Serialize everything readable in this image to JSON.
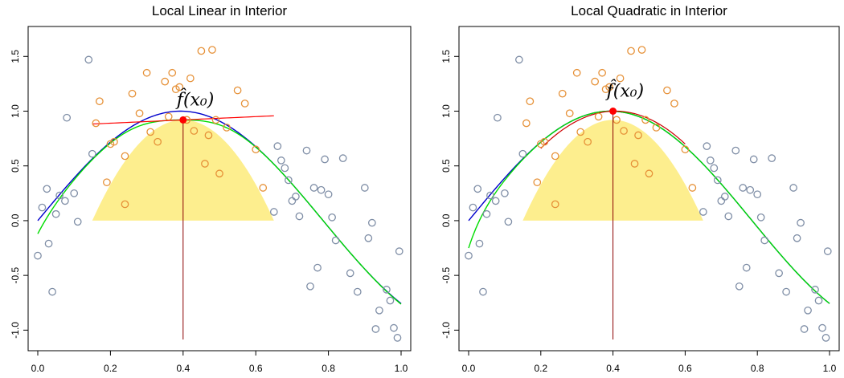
{
  "chart_data": [
    {
      "type": "scatter",
      "title": "Local Linear in Interior",
      "xlabel": "",
      "ylabel": "",
      "xlim": [
        0,
        1
      ],
      "ylim": [
        -1.1,
        1.7
      ],
      "xticks": [
        "0.0",
        "0.2",
        "0.4",
        "0.6",
        "0.8",
        "1.0"
      ],
      "yticks": [
        "-1.0",
        "-0.5",
        "0.0",
        "0.5",
        "1.0",
        "1.5"
      ],
      "annotation": "f̂(x₀)",
      "x0": 0.4,
      "fhat_x0": 0.92,
      "kernel": {
        "type": "epanechnikov",
        "center": 0.4,
        "halfwidth": 0.25,
        "height": 0.92
      },
      "local_fit": {
        "type": "linear",
        "x_range": [
          0.15,
          0.65
        ],
        "intercept": 0.92,
        "slope": 0.15
      },
      "true_function": "sin(4x)",
      "estimate_function": "smooth_linear",
      "colors": {
        "in_window_points": "#e69138",
        "out_window_points": "#7f8ea6",
        "true_curve": "#0000cc",
        "estimate_curve": "#00dd00",
        "local_fit": "#ff0000",
        "kernel_fill": "#fdee8e",
        "marker_line": "#8b0000",
        "marker_point": "#ff0000"
      },
      "points": {
        "x": [
          0.0,
          0.012,
          0.025,
          0.03,
          0.04,
          0.05,
          0.06,
          0.075,
          0.08,
          0.1,
          0.11,
          0.14,
          0.15,
          0.16,
          0.17,
          0.19,
          0.2,
          0.21,
          0.24,
          0.24,
          0.26,
          0.28,
          0.3,
          0.31,
          0.33,
          0.35,
          0.36,
          0.37,
          0.38,
          0.39,
          0.41,
          0.42,
          0.43,
          0.45,
          0.46,
          0.47,
          0.48,
          0.49,
          0.5,
          0.52,
          0.55,
          0.57,
          0.6,
          0.62,
          0.65,
          0.66,
          0.67,
          0.68,
          0.69,
          0.7,
          0.71,
          0.72,
          0.74,
          0.75,
          0.76,
          0.77,
          0.78,
          0.79,
          0.8,
          0.81,
          0.82,
          0.84,
          0.86,
          0.88,
          0.9,
          0.91,
          0.92,
          0.93,
          0.94,
          0.96,
          0.97,
          0.98,
          0.99,
          0.995
        ],
        "y": [
          -0.32,
          0.12,
          0.29,
          -0.21,
          -0.65,
          0.06,
          0.23,
          0.18,
          0.94,
          0.25,
          -0.01,
          1.47,
          0.61,
          0.89,
          1.09,
          0.35,
          0.7,
          0.72,
          0.15,
          0.59,
          1.16,
          0.98,
          1.35,
          0.81,
          0.72,
          1.27,
          0.95,
          1.35,
          1.2,
          1.22,
          0.92,
          1.3,
          0.82,
          1.55,
          0.52,
          0.78,
          1.56,
          0.92,
          0.43,
          0.85,
          1.19,
          1.07,
          0.65,
          0.3,
          0.08,
          0.68,
          0.55,
          0.48,
          0.37,
          0.18,
          0.22,
          0.04,
          0.64,
          -0.6,
          0.3,
          -0.43,
          0.28,
          0.56,
          0.24,
          0.03,
          -0.18,
          0.57,
          -0.48,
          -0.65,
          0.3,
          -0.16,
          -0.02,
          -0.99,
          -0.82,
          -0.63,
          -0.73,
          -0.98,
          -1.07,
          -0.28
        ]
      }
    },
    {
      "type": "scatter",
      "title": "Local Quadratic in Interior",
      "xlabel": "",
      "ylabel": "",
      "xlim": [
        0,
        1
      ],
      "ylim": [
        -1.1,
        1.7
      ],
      "xticks": [
        "0.0",
        "0.2",
        "0.4",
        "0.6",
        "0.8",
        "1.0"
      ],
      "yticks": [
        "-1.0",
        "-0.5",
        "0.0",
        "0.5",
        "1.0",
        "1.5"
      ],
      "annotation": "f̂(x₀)",
      "x0": 0.4,
      "fhat_x0": 1.0,
      "kernel": {
        "type": "epanechnikov",
        "center": 0.4,
        "halfwidth": 0.25,
        "height": 0.92
      },
      "local_fit": {
        "type": "quadratic",
        "x_range": [
          0.15,
          0.65
        ],
        "intercept": 1.0,
        "slope": 0.1,
        "curvature": -8
      },
      "true_function": "sin(4x)",
      "estimate_function": "smooth_quadratic",
      "colors": {
        "in_window_points": "#e69138",
        "out_window_points": "#7f8ea6",
        "true_curve": "#0000cc",
        "estimate_curve": "#00dd00",
        "local_fit": "#cc0000",
        "kernel_fill": "#fdee8e",
        "marker_line": "#8b0000",
        "marker_point": "#ff0000"
      },
      "points": {
        "x": [
          0.0,
          0.012,
          0.025,
          0.03,
          0.04,
          0.05,
          0.06,
          0.075,
          0.08,
          0.1,
          0.11,
          0.14,
          0.15,
          0.16,
          0.17,
          0.19,
          0.2,
          0.21,
          0.24,
          0.24,
          0.26,
          0.28,
          0.3,
          0.31,
          0.33,
          0.35,
          0.36,
          0.37,
          0.38,
          0.39,
          0.41,
          0.42,
          0.43,
          0.45,
          0.46,
          0.47,
          0.48,
          0.49,
          0.5,
          0.52,
          0.55,
          0.57,
          0.6,
          0.62,
          0.65,
          0.66,
          0.67,
          0.68,
          0.69,
          0.7,
          0.71,
          0.72,
          0.74,
          0.75,
          0.76,
          0.77,
          0.78,
          0.79,
          0.8,
          0.81,
          0.82,
          0.84,
          0.86,
          0.88,
          0.9,
          0.91,
          0.92,
          0.93,
          0.94,
          0.96,
          0.97,
          0.98,
          0.99,
          0.995
        ],
        "y": [
          -0.32,
          0.12,
          0.29,
          -0.21,
          -0.65,
          0.06,
          0.23,
          0.18,
          0.94,
          0.25,
          -0.01,
          1.47,
          0.61,
          0.89,
          1.09,
          0.35,
          0.7,
          0.72,
          0.15,
          0.59,
          1.16,
          0.98,
          1.35,
          0.81,
          0.72,
          1.27,
          0.95,
          1.35,
          1.2,
          1.22,
          0.92,
          1.3,
          0.82,
          1.55,
          0.52,
          0.78,
          1.56,
          0.92,
          0.43,
          0.85,
          1.19,
          1.07,
          0.65,
          0.3,
          0.08,
          0.68,
          0.55,
          0.48,
          0.37,
          0.18,
          0.22,
          0.04,
          0.64,
          -0.6,
          0.3,
          -0.43,
          0.28,
          0.56,
          0.24,
          0.03,
          -0.18,
          0.57,
          -0.48,
          -0.65,
          0.3,
          -0.16,
          -0.02,
          -0.99,
          -0.82,
          -0.63,
          -0.73,
          -0.98,
          -1.07,
          -0.28
        ]
      }
    }
  ]
}
